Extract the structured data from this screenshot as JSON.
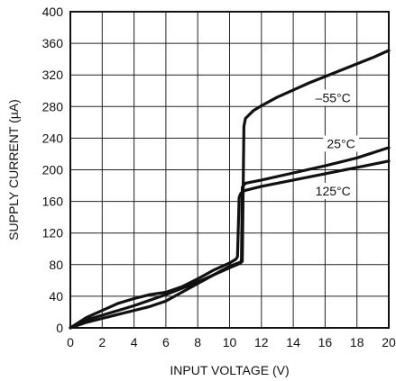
{
  "chart_data": {
    "type": "line",
    "xlabel": "INPUT VOLTAGE (V)",
    "ylabel": "SUPPLY CURRENT (µA)",
    "xlim": [
      0,
      20
    ],
    "ylim": [
      0,
      400
    ],
    "x_ticks": [
      0,
      2,
      4,
      6,
      8,
      10,
      12,
      14,
      16,
      18,
      20
    ],
    "y_ticks": [
      0,
      40,
      80,
      120,
      160,
      200,
      240,
      280,
      320,
      360,
      400
    ],
    "x_tick_labels": [
      "0",
      "2",
      "4",
      "6",
      "8",
      "10",
      "12",
      "14",
      "16",
      "18",
      "20"
    ],
    "y_tick_labels": [
      "0",
      "40",
      "80",
      "120",
      "160",
      "200",
      "240",
      "280",
      "320",
      "360",
      "400"
    ],
    "grid": true,
    "line_color": "#111111",
    "series": [
      {
        "name": "–55°C",
        "points": [
          [
            0,
            0
          ],
          [
            1,
            7
          ],
          [
            2,
            12
          ],
          [
            3,
            17
          ],
          [
            4,
            22
          ],
          [
            5,
            27
          ],
          [
            6,
            34
          ],
          [
            7,
            45
          ],
          [
            8,
            56
          ],
          [
            9,
            67
          ],
          [
            10,
            78
          ],
          [
            10.8,
            84
          ],
          [
            10.9,
            255
          ],
          [
            11,
            265
          ],
          [
            11.5,
            275
          ],
          [
            12,
            281
          ],
          [
            13,
            292
          ],
          [
            14,
            301
          ],
          [
            15,
            310
          ],
          [
            16,
            318
          ],
          [
            17,
            326
          ],
          [
            18,
            334
          ],
          [
            19,
            342
          ],
          [
            20,
            351
          ]
        ]
      },
      {
        "name": "25°C",
        "points": [
          [
            0,
            0
          ],
          [
            1,
            10
          ],
          [
            2,
            16
          ],
          [
            4,
            28
          ],
          [
            6,
            42
          ],
          [
            8,
            58
          ],
          [
            9,
            67
          ],
          [
            10,
            76
          ],
          [
            10.7,
            82
          ],
          [
            10.75,
            87
          ],
          [
            10.8,
            178
          ],
          [
            11,
            183
          ],
          [
            12,
            187
          ],
          [
            14,
            196
          ],
          [
            16,
            205
          ],
          [
            18,
            215
          ],
          [
            20,
            228
          ]
        ]
      },
      {
        "name": "125°C",
        "points": [
          [
            0,
            0
          ],
          [
            1,
            13
          ],
          [
            2,
            22
          ],
          [
            3,
            31
          ],
          [
            4,
            37
          ],
          [
            5,
            42
          ],
          [
            6,
            45
          ],
          [
            7,
            52
          ],
          [
            8,
            62
          ],
          [
            9,
            73
          ],
          [
            10,
            82
          ],
          [
            10.4,
            87
          ],
          [
            10.5,
            90
          ],
          [
            10.6,
            165
          ],
          [
            10.7,
            170
          ],
          [
            10.8,
            172
          ],
          [
            11,
            174
          ],
          [
            12,
            179
          ],
          [
            14,
            187
          ],
          [
            16,
            195
          ],
          [
            18,
            203
          ],
          [
            20,
            211
          ]
        ]
      }
    ]
  }
}
